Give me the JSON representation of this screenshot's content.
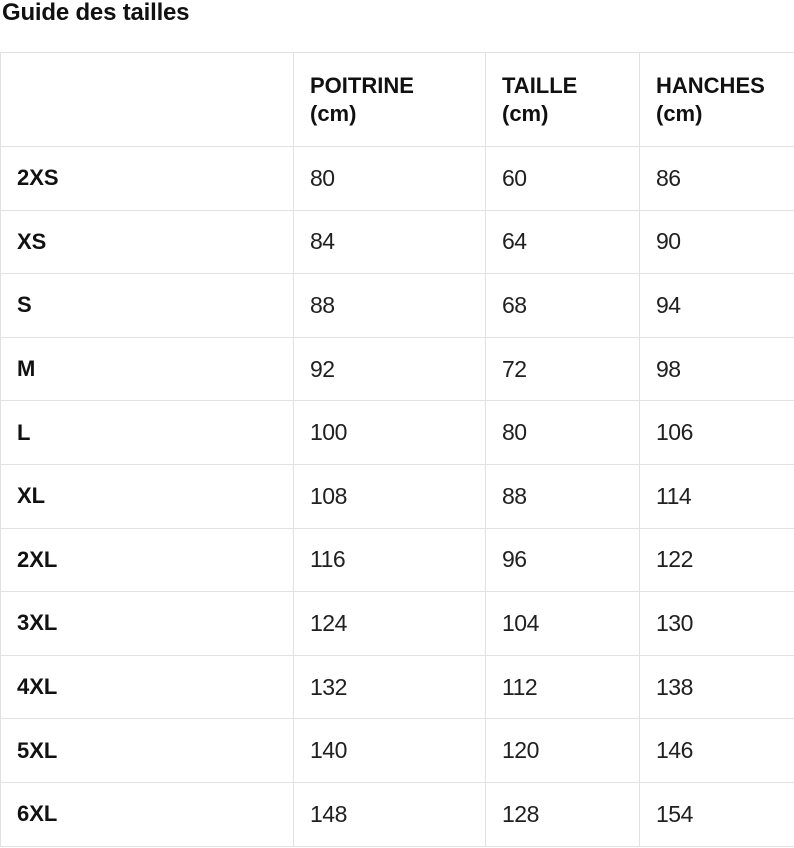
{
  "page": {
    "title": "Guide des tailles"
  },
  "table": {
    "columns": [
      {
        "name": "",
        "unit": ""
      },
      {
        "name": "POITRINE",
        "unit": "(cm)"
      },
      {
        "name": "TAILLE",
        "unit": "(cm)"
      },
      {
        "name": "HANCHES",
        "unit": "(cm)"
      }
    ],
    "rows": [
      {
        "size": "2XS",
        "values": [
          "80",
          "60",
          "86"
        ]
      },
      {
        "size": "XS",
        "values": [
          "84",
          "64",
          "90"
        ]
      },
      {
        "size": "S",
        "values": [
          "88",
          "68",
          "94"
        ]
      },
      {
        "size": "M",
        "values": [
          "92",
          "72",
          "98"
        ]
      },
      {
        "size": "L",
        "values": [
          "100",
          "80",
          "106"
        ]
      },
      {
        "size": "XL",
        "values": [
          "108",
          "88",
          "114"
        ]
      },
      {
        "size": "2XL",
        "values": [
          "116",
          "96",
          "122"
        ]
      },
      {
        "size": "3XL",
        "values": [
          "124",
          "104",
          "130"
        ]
      },
      {
        "size": "4XL",
        "values": [
          "132",
          "112",
          "138"
        ]
      },
      {
        "size": "5XL",
        "values": [
          "140",
          "120",
          "146"
        ]
      },
      {
        "size": "6XL",
        "values": [
          "148",
          "128",
          "154"
        ]
      }
    ],
    "colors": {
      "border": "#e2e2e2",
      "text": "#1b1b1b",
      "background": "#ffffff"
    }
  }
}
